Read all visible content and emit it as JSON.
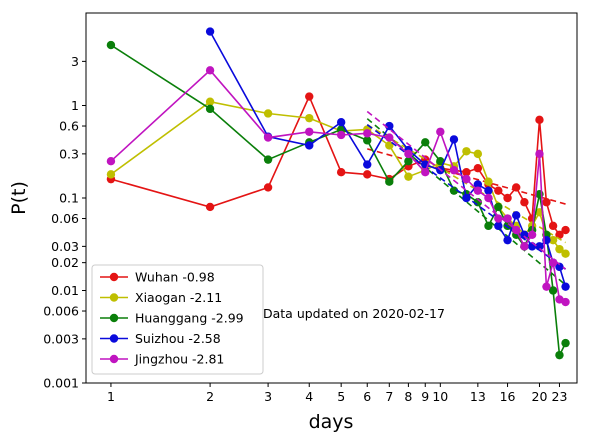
{
  "chart_data": {
    "type": "line",
    "xlabel": "days",
    "ylabel": "P(t)",
    "x_scale": "log",
    "y_scale": "log",
    "xlim": [
      0.84,
      26
    ],
    "ylim": [
      0.001,
      10
    ],
    "x_ticks": [
      1,
      2,
      3,
      4,
      5,
      6,
      7,
      8,
      9,
      10,
      13,
      16,
      20,
      23
    ],
    "y_ticks": [
      0.001,
      0.003,
      0.006,
      0.01,
      0.02,
      0.03,
      0.06,
      0.1,
      0.3,
      0.6,
      1,
      3
    ],
    "y_tick_labels": [
      "0.001",
      "0.003",
      "0.006",
      "0.01",
      "0.02",
      "0.03",
      "0.06",
      "0.1",
      "0.3",
      "0.6",
      "1",
      "3"
    ],
    "annotation": "Data updated on 2020-02-17",
    "legend_position": "lower-left",
    "series": [
      {
        "name": "Wuhan -0.98",
        "color": "#e41414",
        "x": [
          1,
          2,
          3,
          4,
          5,
          6,
          7,
          8,
          9,
          10,
          11,
          12,
          13,
          14,
          15,
          16,
          17,
          18,
          19,
          20,
          21,
          22,
          23,
          24
        ],
        "y": [
          0.16,
          0.08,
          0.13,
          1.25,
          0.19,
          0.18,
          0.16,
          0.22,
          0.26,
          0.21,
          0.2,
          0.19,
          0.21,
          0.14,
          0.12,
          0.1,
          0.13,
          0.09,
          0.06,
          0.7,
          0.09,
          0.05,
          0.04,
          0.045
        ],
        "fit": {
          "x": [
            6,
            24
          ],
          "y": [
            0.34,
            0.086
          ]
        }
      },
      {
        "name": "Xiaogan -2.11",
        "color": "#bfbf00",
        "x": [
          1,
          2,
          3,
          4,
          5,
          6,
          7,
          8,
          9,
          10,
          11,
          12,
          13,
          14,
          15,
          16,
          17,
          18,
          19,
          20,
          21,
          22,
          23,
          24
        ],
        "y": [
          0.18,
          1.1,
          0.82,
          0.73,
          0.53,
          0.55,
          0.37,
          0.17,
          0.2,
          0.24,
          0.22,
          0.32,
          0.3,
          0.15,
          0.08,
          0.06,
          0.05,
          0.04,
          0.05,
          0.07,
          0.04,
          0.035,
          0.028,
          0.025
        ],
        "fit": {
          "x": [
            6,
            24
          ],
          "y": [
            0.62,
            0.033
          ]
        }
      },
      {
        "name": "Huanggang -2.99",
        "color": "#0a7f0a",
        "x": [
          1,
          2,
          3,
          4,
          5,
          6,
          7,
          8,
          9,
          10,
          11,
          12,
          13,
          14,
          15,
          16,
          17,
          18,
          19,
          20,
          21,
          22,
          23,
          24
        ],
        "y": [
          4.5,
          0.92,
          0.26,
          0.4,
          0.55,
          0.42,
          0.15,
          0.25,
          0.4,
          0.25,
          0.12,
          0.11,
          0.09,
          0.05,
          0.08,
          0.05,
          0.04,
          0.03,
          0.045,
          0.11,
          0.04,
          0.01,
          0.002,
          0.0027
        ],
        "fit": {
          "x": [
            6,
            24
          ],
          "y": [
            0.72,
            0.0115
          ]
        }
      },
      {
        "name": "Suizhou -2.58",
        "color": "#0a0adc",
        "x": [
          2,
          3,
          4,
          5,
          6,
          7,
          8,
          9,
          10,
          11,
          12,
          13,
          14,
          15,
          16,
          17,
          18,
          19,
          20,
          21,
          22,
          23,
          24
        ],
        "y": [
          6.3,
          0.46,
          0.37,
          0.66,
          0.23,
          0.6,
          0.33,
          0.23,
          0.2,
          0.43,
          0.1,
          0.14,
          0.12,
          0.05,
          0.035,
          0.065,
          0.04,
          0.03,
          0.03,
          0.035,
          0.02,
          0.018,
          0.011
        ],
        "fit": {
          "x": [
            6,
            24
          ],
          "y": [
            0.62,
            0.017
          ]
        }
      },
      {
        "name": "Jingzhou -2.81",
        "color": "#c014c0",
        "x": [
          1,
          2,
          3,
          4,
          5,
          6,
          7,
          8,
          9,
          10,
          11,
          12,
          13,
          14,
          15,
          16,
          17,
          18,
          19,
          20,
          21,
          22,
          23,
          24
        ],
        "y": [
          0.25,
          2.4,
          0.45,
          0.52,
          0.48,
          0.5,
          0.45,
          0.3,
          0.19,
          0.52,
          0.2,
          0.16,
          0.12,
          0.1,
          0.06,
          0.06,
          0.045,
          0.03,
          0.04,
          0.3,
          0.011,
          0.02,
          0.008,
          0.0075
        ],
        "fit": {
          "x": [
            6,
            24
          ],
          "y": [
            0.86,
            0.017
          ]
        }
      }
    ]
  }
}
